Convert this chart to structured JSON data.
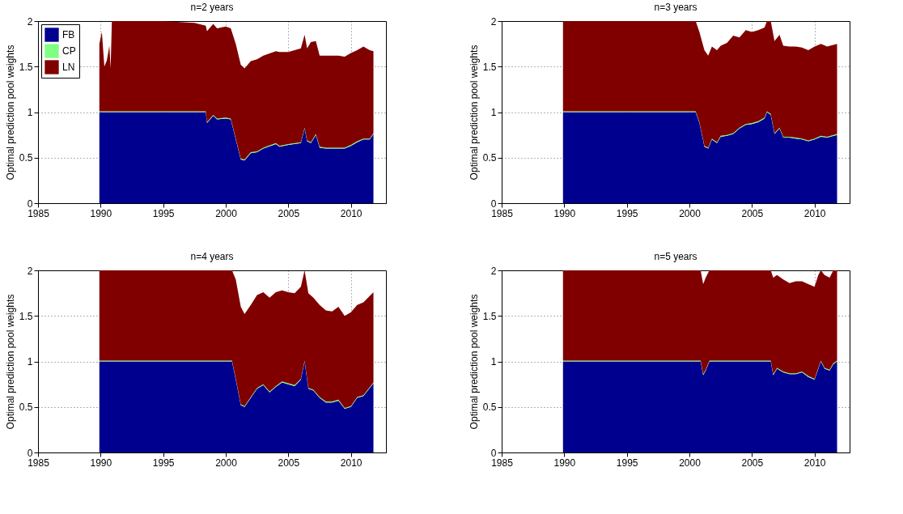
{
  "chart_data": [
    {
      "type": "area",
      "stacked": true,
      "title": "n=2 years",
      "ylabel": "Optimal prediction pool weights",
      "xlim": [
        1985,
        2012.8
      ],
      "xticks": [
        1985,
        1990,
        1995,
        2000,
        2005,
        2010
      ],
      "ylim": [
        0,
        2
      ],
      "yticks": [
        0,
        0.5,
        1,
        1.5,
        2
      ],
      "grid": true,
      "legend": "top left",
      "x": [
        1989.9,
        1990.1,
        1990.3,
        1990.5,
        1990.7,
        1990.8,
        1990.9,
        1995,
        1997.5,
        1998.4,
        1998.5,
        1999,
        1999.3,
        2000,
        2000.4,
        2000.8,
        2001.2,
        2001.5,
        2002,
        2002.5,
        2003,
        2004,
        2004.3,
        2005,
        2006,
        2006.3,
        2006.5,
        2006.8,
        2007.2,
        2007.5,
        2008,
        2009,
        2009.5,
        2010,
        2010.5,
        2011,
        2011.5,
        2011.8
      ],
      "series": [
        {
          "name": "FB",
          "color": "#00008f",
          "values": [
            1,
            1,
            1,
            1,
            1,
            1,
            1,
            1,
            1,
            1,
            0.88,
            0.96,
            0.92,
            0.93,
            0.92,
            0.7,
            0.48,
            0.47,
            0.55,
            0.56,
            0.6,
            0.65,
            0.62,
            0.64,
            0.66,
            0.82,
            0.68,
            0.66,
            0.75,
            0.61,
            0.6,
            0.6,
            0.6,
            0.63,
            0.67,
            0.7,
            0.7,
            0.76
          ]
        },
        {
          "name": "CP",
          "color": "#80ff80",
          "values": [
            0.01,
            0.01,
            0.01,
            0.01,
            0.01,
            0.01,
            0.01,
            0.01,
            0.01,
            0.01,
            0.01,
            0.01,
            0.01,
            0.01,
            0.01,
            0.01,
            0.01,
            0.01,
            0.01,
            0.01,
            0.01,
            0.01,
            0.01,
            0.01,
            0.01,
            0.01,
            0.01,
            0.01,
            0.01,
            0.01,
            0.01,
            0.01,
            0.01,
            0.01,
            0.01,
            0.01,
            0.01,
            0.01
          ]
        },
        {
          "name": "LN",
          "color": "#800000",
          "values": [
            0.74,
            0.87,
            0.49,
            0.56,
            0.72,
            0.47,
            0.99,
            0.99,
            0.97,
            0.94,
            1.0,
            1.0,
            0.99,
            1.0,
            0.99,
            1.04,
            1.03,
            1.0,
            1.0,
            1.01,
            1.01,
            1.01,
            1.03,
            1.01,
            1.03,
            1.02,
            1.01,
            1.1,
            1.02,
            1.0,
            1.01,
            1.01,
            1.0,
            1.01,
            1.0,
            1.01,
            0.97,
            0.9
          ]
        }
      ]
    },
    {
      "type": "area",
      "stacked": true,
      "title": "n=3 years",
      "ylabel": "Optimal prediction pool weights",
      "xlim": [
        1985,
        2012.8
      ],
      "xticks": [
        1985,
        1990,
        1995,
        2000,
        2005,
        2010
      ],
      "ylim": [
        0,
        2
      ],
      "yticks": [
        0,
        0.5,
        1,
        1.5,
        2
      ],
      "grid": true,
      "x": [
        1989.9,
        2000.5,
        2000.8,
        2001.2,
        2001.5,
        2001.8,
        2002.2,
        2002.5,
        2003,
        2003.5,
        2004,
        2004.5,
        2005,
        2005.5,
        2006,
        2006.2,
        2006.5,
        2006.8,
        2007.2,
        2007.5,
        2008,
        2008.5,
        2009,
        2009.5,
        2010,
        2010.5,
        2011,
        2011.8
      ],
      "series": [
        {
          "color": "#00008f",
          "values": [
            1,
            1,
            0.88,
            0.62,
            0.6,
            0.7,
            0.66,
            0.73,
            0.74,
            0.76,
            0.82,
            0.86,
            0.87,
            0.89,
            0.93,
            1,
            0.97,
            0.76,
            0.82,
            0.72,
            0.72,
            0.71,
            0.7,
            0.68,
            0.7,
            0.73,
            0.72,
            0.75
          ]
        },
        {
          "color": "#80ff80",
          "values": [
            0.01,
            0.01,
            0.01,
            0.01,
            0.01,
            0.01,
            0.01,
            0.01,
            0.01,
            0.01,
            0.01,
            0.01,
            0.01,
            0.01,
            0.01,
            0.01,
            0.01,
            0.01,
            0.01,
            0.01,
            0.01,
            0.01,
            0.01,
            0.01,
            0.01,
            0.01,
            0.01,
            0.01
          ]
        },
        {
          "color": "#800000",
          "values": [
            0.99,
            0.99,
            0.99,
            1.05,
            1.01,
            1.01,
            1.01,
            0.99,
            1.01,
            1.07,
            0.99,
            1.03,
            1.0,
            1.0,
            0.99,
            0.99,
            1.02,
            1.01,
            1.02,
            1.0,
            0.99,
            1.0,
            1.0,
            0.99,
            1.01,
            1.01,
            0.99,
            0.99
          ]
        }
      ]
    },
    {
      "type": "area",
      "stacked": true,
      "title": "n=4 years",
      "ylabel": "Optimal prediction pool weights",
      "xlim": [
        1985,
        2012.8
      ],
      "xticks": [
        1985,
        1990,
        1995,
        2000,
        2005,
        2010
      ],
      "ylim": [
        0,
        2
      ],
      "yticks": [
        0,
        0.5,
        1,
        1.5,
        2
      ],
      "grid": true,
      "x": [
        1989.9,
        2000.5,
        2000.8,
        2001.2,
        2001.5,
        2002,
        2002.5,
        2003,
        2003.5,
        2004,
        2004.5,
        2005,
        2005.5,
        2006,
        2006.3,
        2006.6,
        2007,
        2007.5,
        2008,
        2008.5,
        2009,
        2009.5,
        2010,
        2010.5,
        2011,
        2011.8
      ],
      "series": [
        {
          "color": "#00008f",
          "values": [
            1,
            1,
            0.8,
            0.52,
            0.5,
            0.6,
            0.7,
            0.74,
            0.66,
            0.72,
            0.77,
            0.75,
            0.73,
            0.8,
            1,
            0.7,
            0.68,
            0.6,
            0.55,
            0.55,
            0.57,
            0.48,
            0.5,
            0.6,
            0.62,
            0.76
          ]
        },
        {
          "color": "#80ff80",
          "values": [
            0.01,
            0.01,
            0.01,
            0.01,
            0.01,
            0.01,
            0.01,
            0.01,
            0.01,
            0.01,
            0.01,
            0.01,
            0.01,
            0.01,
            0.01,
            0.01,
            0.01,
            0.01,
            0.01,
            0.01,
            0.01,
            0.01,
            0.01,
            0.01,
            0.01,
            0.01
          ]
        },
        {
          "color": "#800000",
          "values": [
            0.99,
            0.99,
            1.09,
            1.07,
            1.01,
            1.01,
            1.02,
            1.01,
            1.03,
            1.03,
            1.0,
            1.0,
            1.01,
            1.01,
            0.99,
            1.04,
            1.01,
            1.01,
            1.0,
            0.99,
            1.02,
            1.01,
            1.03,
            1.01,
            1.02,
            0.99
          ]
        }
      ]
    },
    {
      "type": "area",
      "stacked": true,
      "title": "n=5 years",
      "ylabel": "Optimal prediction pool weights",
      "xlim": [
        1985,
        2012.8
      ],
      "xticks": [
        1985,
        1990,
        1995,
        2000,
        2005,
        2010
      ],
      "ylim": [
        0,
        2
      ],
      "yticks": [
        0,
        0.5,
        1,
        1.5,
        2
      ],
      "grid": true,
      "x": [
        1989.9,
        2000.9,
        2001.1,
        2001.3,
        2001.6,
        2006.5,
        2006.7,
        2007,
        2007.5,
        2008,
        2008.5,
        2009,
        2009.5,
        2010,
        2010.3,
        2010.5,
        2010.8,
        2011.2,
        2011.5,
        2011.8
      ],
      "series": [
        {
          "color": "#00008f",
          "values": [
            1,
            1,
            0.85,
            0.9,
            1,
            1,
            0.85,
            0.92,
            0.88,
            0.86,
            0.86,
            0.88,
            0.83,
            0.8,
            0.92,
            1,
            0.92,
            0.9,
            0.97,
            1
          ]
        },
        {
          "color": "#80ff80",
          "values": [
            0.01,
            0.01,
            0.01,
            0.01,
            0.01,
            0.01,
            0.01,
            0.01,
            0.01,
            0.01,
            0.01,
            0.01,
            0.01,
            0.01,
            0.01,
            0.01,
            0.01,
            0.01,
            0.01,
            0.01
          ]
        },
        {
          "color": "#800000",
          "values": [
            0.99,
            0.99,
            0.99,
            1.01,
            0.99,
            0.99,
            1.06,
            1.02,
            1.01,
            0.99,
            1.01,
            0.99,
            1.01,
            1.01,
            1.02,
            0.99,
            1.02,
            1.01,
            1.02,
            0.99
          ]
        }
      ]
    }
  ]
}
